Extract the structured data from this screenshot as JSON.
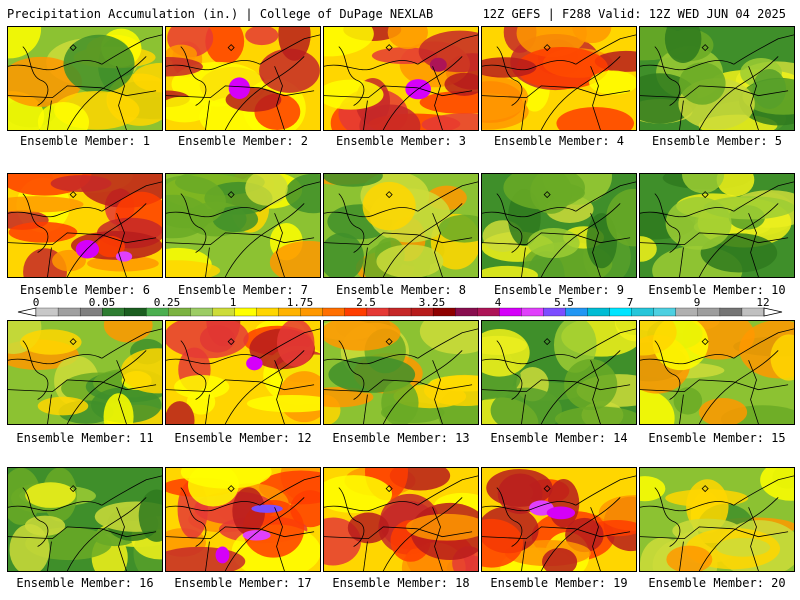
{
  "header": {
    "left_title": "Precipitation Accumulation (in.) | College of DuPage NEXLAB",
    "right_title": "12Z GEFS | F288 Valid: 12Z WED JUN 04 2025"
  },
  "colorbar": {
    "tick_labels": [
      "0",
      "0.05",
      "0.25",
      "1",
      "1.75",
      "2.5",
      "3.25",
      "4",
      "5.5",
      "7",
      "9",
      "12"
    ],
    "colors": [
      "#c8c8c8",
      "#a0a0a0",
      "#808080",
      "#2e7d32",
      "#1b5e20",
      "#4caf50",
      "#7cb342",
      "#9ccc65",
      "#cddc39",
      "#ffff00",
      "#ffd600",
      "#ffb300",
      "#ff9800",
      "#ff6f00",
      "#ff3d00",
      "#e53935",
      "#c62828",
      "#b71c1c",
      "#8e0000",
      "#880e4f",
      "#ad1457",
      "#d500f9",
      "#e040fb",
      "#7c4dff",
      "#2196f3",
      "#00bcd4",
      "#00e5ff",
      "#26c6da",
      "#4dd0e1",
      "#b0b0b0",
      "#9e9e9e",
      "#757575",
      "#c0c0c0"
    ]
  },
  "members": [
    {
      "label": "Ensemble Member: 1",
      "tone": "mixed"
    },
    {
      "label": "Ensemble Member: 2",
      "tone": "heavy"
    },
    {
      "label": "Ensemble Member: 3",
      "tone": "heavy"
    },
    {
      "label": "Ensemble Member: 4",
      "tone": "heavy"
    },
    {
      "label": "Ensemble Member: 5",
      "tone": "light"
    },
    {
      "label": "Ensemble Member: 6",
      "tone": "heavy"
    },
    {
      "label": "Ensemble Member: 7",
      "tone": "mixed"
    },
    {
      "label": "Ensemble Member: 8",
      "tone": "mixed"
    },
    {
      "label": "Ensemble Member: 9",
      "tone": "light"
    },
    {
      "label": "Ensemble Member: 10",
      "tone": "light"
    },
    {
      "label": "Ensemble Member: 11",
      "tone": "mixed"
    },
    {
      "label": "Ensemble Member: 12",
      "tone": "heavy"
    },
    {
      "label": "Ensemble Member: 13",
      "tone": "mixed"
    },
    {
      "label": "Ensemble Member: 14",
      "tone": "light"
    },
    {
      "label": "Ensemble Member: 15",
      "tone": "mixed"
    },
    {
      "label": "Ensemble Member: 16",
      "tone": "light"
    },
    {
      "label": "Ensemble Member: 17",
      "tone": "heavy"
    },
    {
      "label": "Ensemble Member: 18",
      "tone": "heavy"
    },
    {
      "label": "Ensemble Member: 19",
      "tone": "heavy"
    },
    {
      "label": "Ensemble Member: 20",
      "tone": "mixed"
    }
  ]
}
